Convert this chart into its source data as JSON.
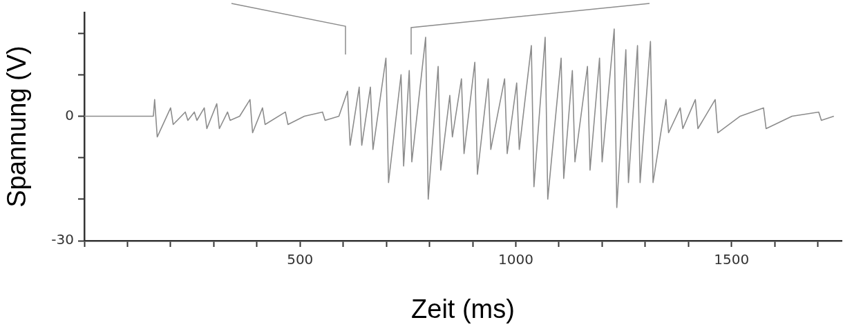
{
  "chart_data": {
    "type": "line",
    "xlabel": "Zeit (ms)",
    "ylabel": "Spannung (V)",
    "x": [
      0,
      160,
      163,
      169,
      200,
      206,
      234,
      240,
      255,
      261,
      278,
      284,
      307,
      313,
      332,
      338,
      360,
      384,
      390,
      413,
      419,
      466,
      472,
      510,
      552,
      558,
      590,
      610,
      616,
      637,
      643,
      663,
      669,
      699,
      705,
      734,
      740,
      753,
      759,
      791,
      797,
      820,
      826,
      847,
      853,
      874,
      880,
      905,
      911,
      936,
      942,
      974,
      980,
      1002,
      1008,
      1036,
      1042,
      1068,
      1074,
      1105,
      1111,
      1131,
      1137,
      1166,
      1172,
      1194,
      1200,
      1228,
      1234,
      1255,
      1261,
      1282,
      1288,
      1312,
      1318,
      1348,
      1354,
      1381,
      1387,
      1416,
      1422,
      1462,
      1468,
      1520,
      1574,
      1580,
      1640,
      1702,
      1708,
      1737
    ],
    "series": [
      {
        "color": "#8c8c8c",
        "values": [
          0,
          0,
          4,
          -5,
          2,
          -2,
          1,
          -1,
          1,
          -1,
          2,
          -3,
          3,
          -3,
          1,
          -1,
          0,
          4,
          -4,
          2,
          -2,
          1,
          -2,
          0,
          1,
          -1,
          0,
          6,
          -7,
          7,
          -7,
          7,
          -8,
          14,
          -16,
          10,
          -12,
          11,
          -11,
          19,
          -20,
          12,
          -13,
          5,
          -5,
          9,
          -9,
          13,
          -14,
          9,
          -8,
          9,
          -9,
          8,
          -8,
          17,
          -17,
          19,
          -20,
          14,
          -15,
          11,
          -11,
          12,
          -13,
          14,
          -11,
          21,
          -22,
          16,
          -16,
          17,
          -16,
          18,
          -16,
          4,
          -4,
          2,
          -3,
          4,
          -3,
          4,
          -4,
          0,
          2,
          -3,
          0,
          1,
          -1,
          0
        ]
      }
    ],
    "xlim": [
      0,
      1755
    ],
    "xticks": [
      {
        "value": 0,
        "label": null
      },
      {
        "value": 100,
        "label": null
      },
      {
        "value": 200,
        "label": null
      },
      {
        "value": 300,
        "label": null
      },
      {
        "value": 400,
        "label": null
      },
      500,
      {
        "value": 600,
        "label": null
      },
      {
        "value": 700,
        "label": null
      },
      {
        "value": 800,
        "label": null
      },
      {
        "value": 900,
        "label": null
      },
      1000,
      {
        "value": 1100,
        "label": null
      },
      {
        "value": 1200,
        "label": null
      },
      {
        "value": 1300,
        "label": null
      },
      {
        "value": 1400,
        "label": null
      },
      1500,
      {
        "value": 1600,
        "label": null
      },
      {
        "value": 1700,
        "label": null
      }
    ],
    "ylim": [
      -30,
      25
    ],
    "yticks": [
      -30,
      {
        "value": -20,
        "label": null
      },
      {
        "value": -10,
        "label": null
      },
      0,
      {
        "value": 10,
        "label": null
      },
      {
        "value": 20,
        "label": null
      }
    ],
    "grid": false,
    "line_style": "solid",
    "marker": "none"
  }
}
